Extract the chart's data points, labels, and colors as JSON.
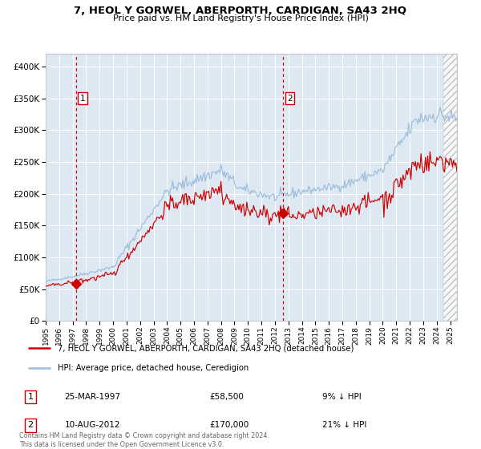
{
  "title": "7, HEOL Y GORWEL, ABERPORTH, CARDIGAN, SA43 2HQ",
  "subtitle": "Price paid vs. HM Land Registry's House Price Index (HPI)",
  "legend_line1": "7, HEOL Y GORWEL, ABERPORTH, CARDIGAN, SA43 2HQ (detached house)",
  "legend_line2": "HPI: Average price, detached house, Ceredigion",
  "annotation1_date": "25-MAR-1997",
  "annotation1_price": "£58,500",
  "annotation1_hpi": "9% ↓ HPI",
  "annotation2_date": "10-AUG-2012",
  "annotation2_price": "£170,000",
  "annotation2_hpi": "21% ↓ HPI",
  "footer": "Contains HM Land Registry data © Crown copyright and database right 2024.\nThis data is licensed under the Open Government Licence v3.0.",
  "hpi_color": "#9bbddb",
  "price_color": "#cc0000",
  "plot_bg": "#dde8f3",
  "grid_color": "#ffffff",
  "sale1_year": 1997.23,
  "sale1_price": 58500,
  "sale2_year": 2012.61,
  "sale2_price": 170000,
  "ylim": [
    0,
    420000
  ],
  "yticks": [
    0,
    50000,
    100000,
    150000,
    200000,
    250000,
    300000,
    350000,
    400000
  ],
  "ytick_labels": [
    "£0",
    "£50K",
    "£100K",
    "£150K",
    "£200K",
    "£250K",
    "£300K",
    "£350K",
    "£400K"
  ],
  "xmin": 1995.0,
  "xmax": 2025.5
}
